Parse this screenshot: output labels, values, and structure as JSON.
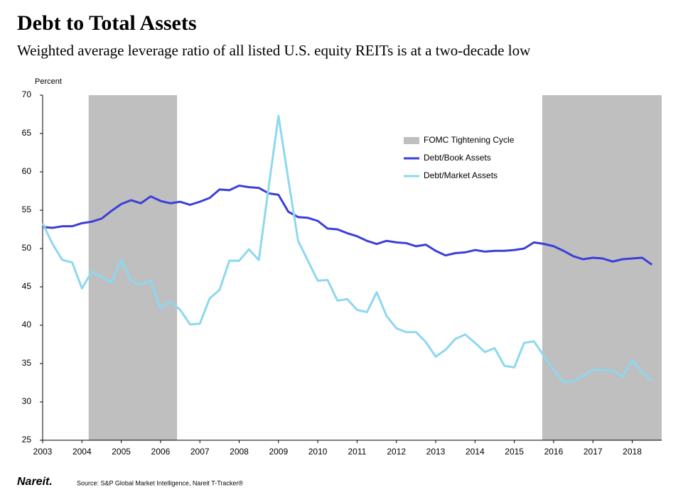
{
  "chart_data": {
    "type": "line",
    "title": "Debt to Total Assets",
    "subtitle": "Weighted average leverage ratio of all listed U.S. equity REITs is at a two-decade low",
    "ylabel": "Percent",
    "source": "Source: S&P Global Market Intelligence, Nareit T-Tracker®",
    "logo": "Nareit.",
    "x": [
      2003,
      2003.25,
      2003.5,
      2003.75,
      2004,
      2004.25,
      2004.5,
      2004.75,
      2005,
      2005.25,
      2005.5,
      2005.75,
      2006,
      2006.25,
      2006.5,
      2006.75,
      2007,
      2007.25,
      2007.5,
      2007.75,
      2008,
      2008.25,
      2008.5,
      2008.75,
      2009,
      2009.25,
      2009.5,
      2009.75,
      2010,
      2010.25,
      2010.5,
      2010.75,
      2011,
      2011.25,
      2011.5,
      2011.75,
      2012,
      2012.25,
      2012.5,
      2012.75,
      2013,
      2013.25,
      2013.5,
      2013.75,
      2014,
      2014.25,
      2014.5,
      2014.75,
      2015,
      2015.25,
      2015.5,
      2015.75,
      2016,
      2016.25,
      2016.5,
      2016.75,
      2017,
      2017.25,
      2017.5,
      2017.75,
      2018,
      2018.25,
      2018.5
    ],
    "shaded": {
      "name": "FOMC Tightening Cycle",
      "color": "#bfbfbf",
      "periods": [
        [
          2004.17,
          2006.42
        ],
        [
          2015.71,
          2018.75
        ]
      ]
    },
    "series": [
      {
        "name": "Debt/Book Assets",
        "color": "#3b3fd8",
        "values": [
          52.8,
          52.7,
          52.9,
          52.9,
          53.3,
          53.5,
          53.9,
          54.9,
          55.8,
          56.3,
          55.9,
          56.8,
          56.2,
          55.9,
          56.1,
          55.7,
          56.1,
          56.6,
          57.7,
          57.6,
          58.2,
          58.0,
          57.9,
          57.2,
          57.0,
          54.8,
          54.1,
          54.0,
          53.6,
          52.6,
          52.5,
          52.0,
          51.6,
          51.0,
          50.6,
          51.0,
          50.8,
          50.7,
          50.3,
          50.5,
          49.7,
          49.1,
          49.4,
          49.5,
          49.8,
          49.6,
          49.7,
          49.7,
          49.8,
          50.0,
          50.8,
          50.6,
          50.3,
          49.7,
          49.0,
          48.6,
          48.8,
          48.7,
          48.3,
          48.6,
          48.7,
          48.8,
          47.9
        ]
      },
      {
        "name": "Debt/Market Assets",
        "color": "#8dd8f0",
        "values": [
          53.3,
          50.6,
          48.5,
          48.2,
          44.8,
          47.0,
          46.3,
          45.6,
          48.5,
          45.8,
          45.3,
          45.8,
          42.2,
          43.1,
          42.0,
          40.1,
          40.2,
          43.5,
          44.6,
          48.4,
          48.4,
          49.9,
          48.5,
          58.0,
          67.3,
          59.0,
          51.0,
          48.4,
          45.8,
          45.9,
          43.2,
          43.4,
          42.0,
          41.7,
          44.3,
          41.2,
          39.6,
          39.1,
          39.1,
          37.8,
          35.9,
          36.8,
          38.2,
          38.8,
          37.7,
          36.5,
          37.0,
          34.7,
          34.5,
          37.7,
          37.9,
          36.0,
          34.2,
          32.6,
          32.7,
          33.4,
          34.2,
          34.1,
          34.1,
          33.3,
          35.4,
          33.9,
          32.7
        ]
      }
    ],
    "xlim": [
      2003,
      2018.75
    ],
    "xticks": [
      2003,
      2004,
      2005,
      2006,
      2007,
      2008,
      2009,
      2010,
      2011,
      2012,
      2013,
      2014,
      2015,
      2016,
      2017,
      2018
    ],
    "ylim": [
      25,
      70
    ],
    "yticks": [
      25,
      30,
      35,
      40,
      45,
      50,
      55,
      60,
      65,
      70
    ]
  }
}
